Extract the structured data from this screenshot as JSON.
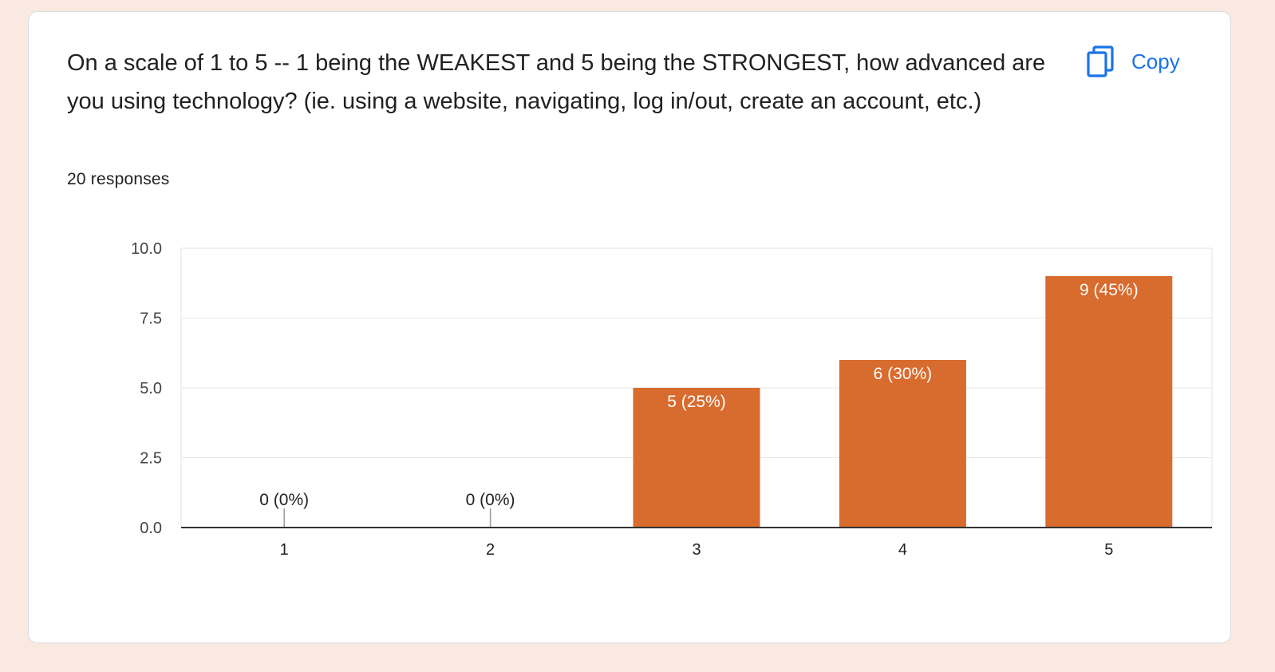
{
  "question": {
    "title": "On a scale of 1 to 5 -- 1 being the WEAKEST and 5 being the STRONGEST, how advanced are you using technology? (ie. using a website, navigating, log in/out, create an account, etc.)",
    "responses": "20 responses"
  },
  "copy_button": {
    "label": "Copy",
    "icon": "copy-icon"
  },
  "colors": {
    "bar": "#d86b2e",
    "accent": "#1a73e8"
  },
  "chart_data": {
    "type": "bar",
    "categories": [
      "1",
      "2",
      "3",
      "4",
      "5"
    ],
    "values": [
      0,
      0,
      5,
      6,
      9
    ],
    "data_labels": [
      "0 (0%)",
      "0 (0%)",
      "5 (25%)",
      "6 (30%)",
      "9 (45%)"
    ],
    "ylim": [
      0,
      10
    ],
    "yticks": [
      "0.0",
      "2.5",
      "5.0",
      "7.5",
      "10.0"
    ],
    "ytick_values": [
      0,
      2.5,
      5,
      7.5,
      10
    ],
    "grid": true,
    "legend": "none",
    "title": "",
    "xlabel": "",
    "ylabel": ""
  }
}
